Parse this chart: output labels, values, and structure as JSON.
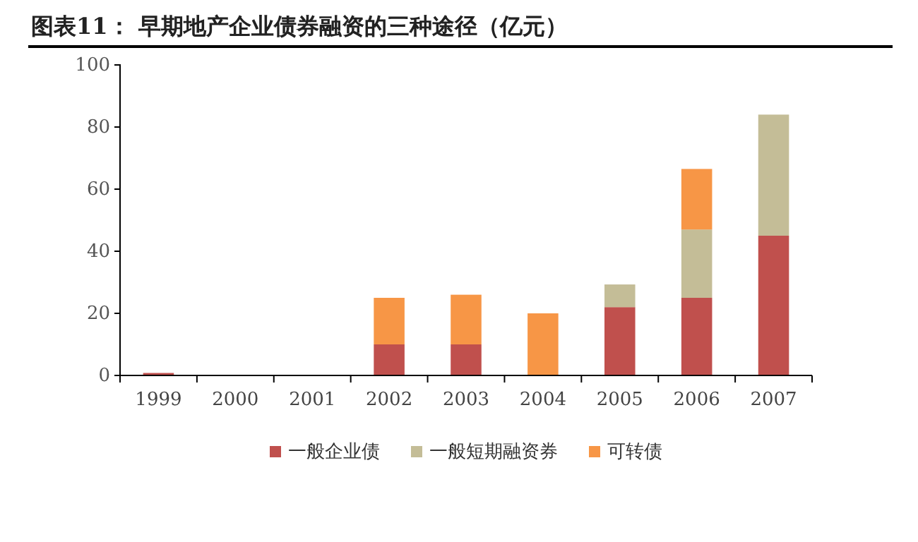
{
  "chart_data": {
    "type": "bar",
    "title": "图表11：      早期地产企业债券融资的三种途径（亿元）",
    "categories": [
      "1999",
      "2000",
      "2001",
      "2002",
      "2003",
      "2004",
      "2005",
      "2006",
      "2007"
    ],
    "series": [
      {
        "name": "一般企业债",
        "color": "#c0504d",
        "values": [
          0.8,
          0,
          0,
          10,
          10,
          0,
          22,
          25,
          45
        ]
      },
      {
        "name": "一般短期融资券",
        "color": "#c4bd97",
        "values": [
          0,
          0,
          0,
          0,
          0,
          0,
          7.3,
          22,
          39
        ]
      },
      {
        "name": "可转债",
        "color": "#f79646",
        "values": [
          0,
          0,
          0,
          15,
          16,
          20,
          0,
          19.5,
          0
        ]
      }
    ],
    "stacked": true,
    "ylim": [
      0,
      100
    ],
    "yticks": [
      0,
      20,
      40,
      60,
      80,
      100
    ],
    "grid": false,
    "legend": "bottom"
  }
}
